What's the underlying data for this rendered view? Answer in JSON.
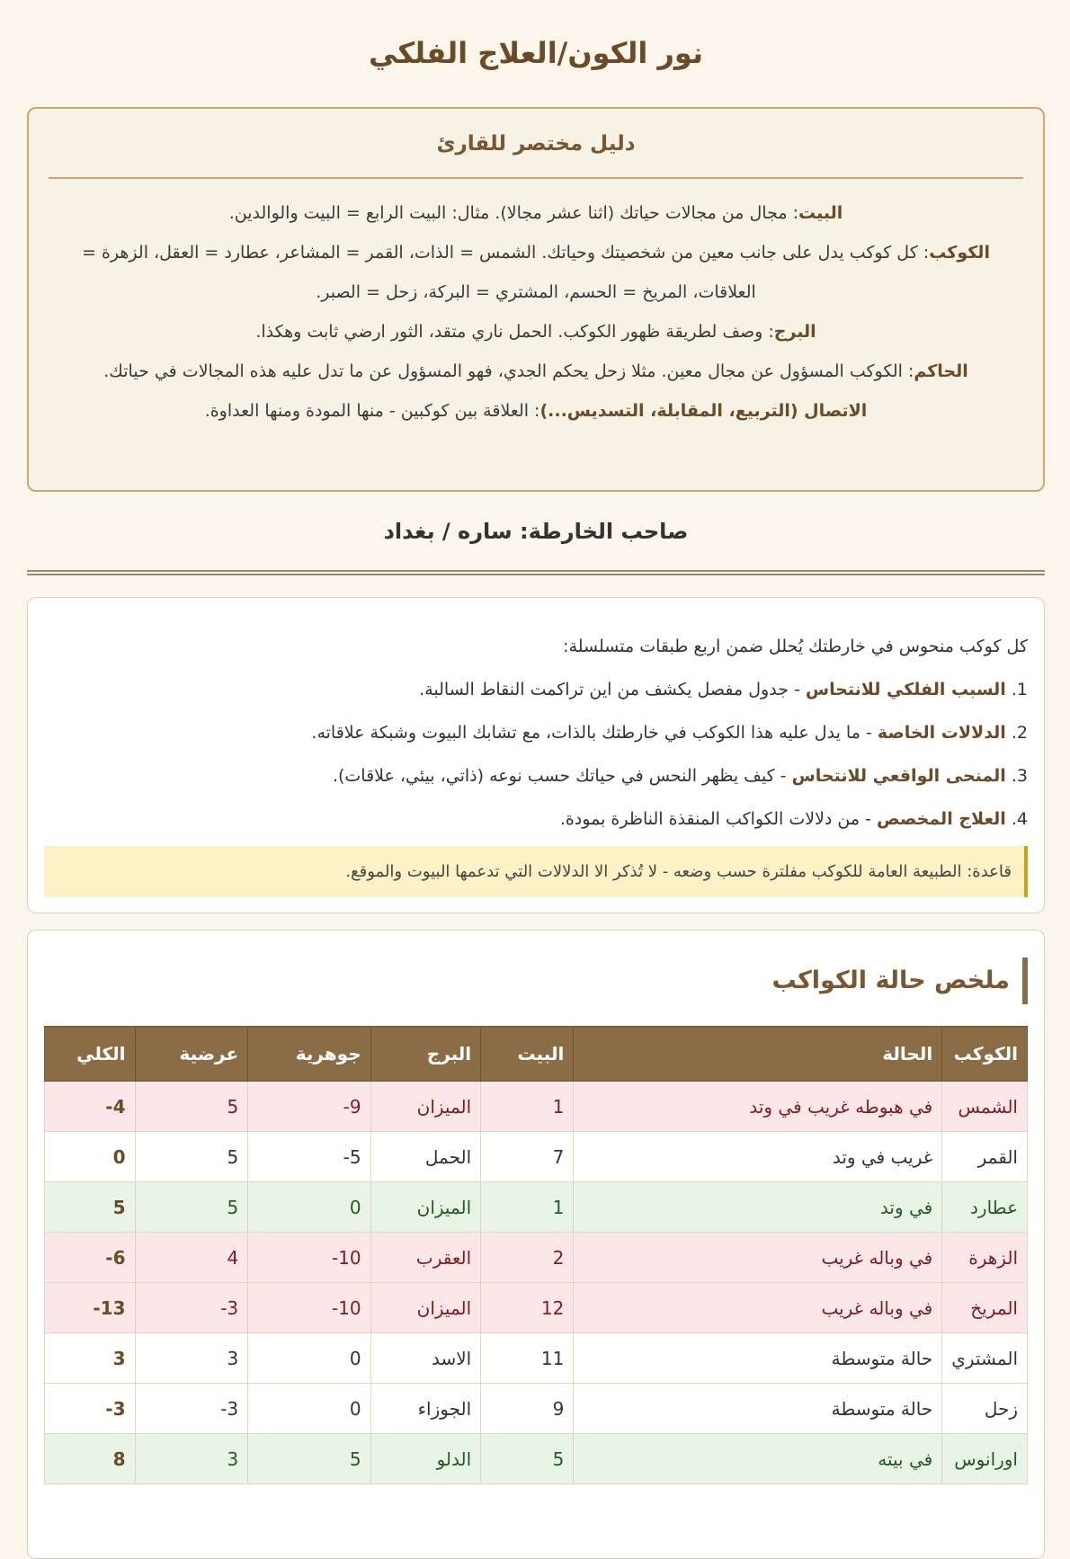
{
  "title": "نور الكون/العلاج الفلكي",
  "guide": {
    "heading": "دليل مختصر للقارئ",
    "items": [
      {
        "term": "البيت",
        "text": ": مجال من مجالات حياتك (اثنا عشر مجالا). مثال: البيت الرابع = البيت والوالدين."
      },
      {
        "term": "الكوكب",
        "text": ": كل كوكب يدل على جانب معين من شخصيتك وحياتك. الشمس = الذات، القمر = المشاعر، عطارد = العقل، الزهرة = العلاقات، المريخ = الحسم، المشتري = البركة، زحل = الصبر."
      },
      {
        "term": "البرج",
        "text": ": وصف لطريقة ظهور الكوكب. الحمل ناري متقد، الثور ارضي ثابت وهكذا."
      },
      {
        "term": "الحاكم",
        "text": ": الكوكب المسؤول عن مجال معين. مثلا زحل يحكم الجدي، فهو المسؤول عن ما تدل عليه هذه المجالات في حياتك."
      },
      {
        "term": "الاتصال (التربيع، المقابلة، التسديس...)",
        "text": ": العلاقة بين كوكبين - منها المودة ومنها العداوة."
      }
    ]
  },
  "owner": "صاحب الخارطة: ساره / بغداد",
  "layers": {
    "intro": "كل كوكب منحوس في خارطتك يُحلل ضمن اربع طبقات متسلسلة:",
    "items": [
      {
        "num": "1. ",
        "term": "السبب الفلكي للانتحاس",
        "text": " - جدول مفصل يكشف من اين تراكمت النقاط السالبة."
      },
      {
        "num": "2. ",
        "term": "الدلالات الخاصة",
        "text": " - ما يدل عليه هذا الكوكب في خارطتك بالذات، مع تشابك البيوت وشبكة علاقاته."
      },
      {
        "num": "3. ",
        "term": "المنحى الواقعي للانتحاس",
        "text": " - كيف يظهر النحس في حياتك حسب نوعه (ذاتي، بيئي، علاقات)."
      },
      {
        "num": "4. ",
        "term": "العلاج المخصص",
        "text": " - من دلالات الكواكب المنقذة الناظرة بمودة."
      }
    ],
    "rule": "قاعدة: الطبيعة العامة للكوكب مفلترة حسب وضعه - لا تُذكر الا الدلالات التي تدعمها البيوت والموقع."
  },
  "summary": {
    "heading": "ملخص حالة الكواكب",
    "columns": [
      "الكوكب",
      "الحالة",
      "البيت",
      "البرج",
      "جوهرية",
      "عرضية",
      "الكلي"
    ],
    "rows": [
      {
        "tone": "bad",
        "cells": [
          "الشمس",
          "في هبوطه غريب في وتد",
          "1",
          "الميزان",
          "-9",
          "5",
          "-4"
        ]
      },
      {
        "tone": "neutral",
        "cells": [
          "القمر",
          "غريب في وتد",
          "7",
          "الحمل",
          "-5",
          "5",
          "0"
        ]
      },
      {
        "tone": "good",
        "cells": [
          "عطارد",
          "في وتد",
          "1",
          "الميزان",
          "0",
          "5",
          "5"
        ]
      },
      {
        "tone": "bad",
        "cells": [
          "الزهرة",
          "في وباله غريب",
          "2",
          "العقرب",
          "-10",
          "4",
          "-6"
        ]
      },
      {
        "tone": "bad",
        "cells": [
          "المريخ",
          "في وباله غريب",
          "12",
          "الميزان",
          "-10",
          "-3",
          "-13"
        ]
      },
      {
        "tone": "neutral",
        "cells": [
          "المشتري",
          "حالة متوسطة",
          "11",
          "الاسد",
          "0",
          "3",
          "3"
        ]
      },
      {
        "tone": "neutral",
        "cells": [
          "زحل",
          "حالة متوسطة",
          "9",
          "الجوزاء",
          "0",
          "-3",
          "-3"
        ]
      },
      {
        "tone": "good",
        "cells": [
          "اورانوس",
          "في بيته",
          "5",
          "الدلو",
          "5",
          "3",
          "8"
        ]
      }
    ]
  },
  "colors": {
    "header": "#8b6d45",
    "bad_row": "#fce7e8",
    "good_row": "#e8f4e6",
    "accent": "#c9a86e"
  }
}
